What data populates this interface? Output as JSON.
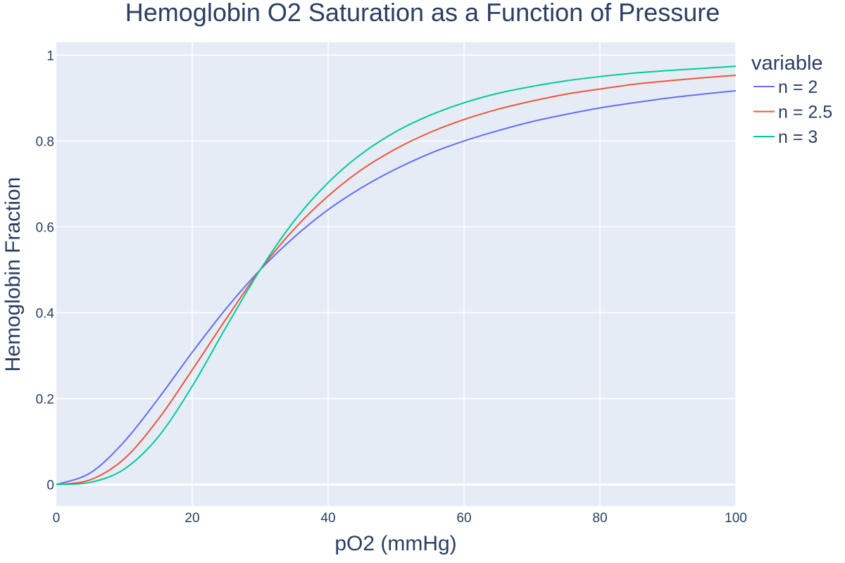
{
  "chart_data": {
    "type": "line",
    "title": "Hemoglobin O2 Saturation as a Function of Pressure",
    "xlabel": "pO2 (mmHg)",
    "ylabel": "Hemoglobin Fraction",
    "xlim": [
      0,
      100
    ],
    "ylim": [
      -0.05,
      1.03
    ],
    "x_ticks": [
      0,
      20,
      40,
      60,
      80,
      100
    ],
    "y_ticks": [
      0,
      0.2,
      0.4,
      0.6,
      0.8,
      1
    ],
    "x_tick_labels": [
      "0",
      "20",
      "40",
      "60",
      "80",
      "100"
    ],
    "y_tick_labels": [
      "0",
      "0.2",
      "0.4",
      "0.6",
      "0.8",
      "1"
    ],
    "grid": true,
    "legend": {
      "title": "variable",
      "position": "right-top"
    },
    "x": [
      0,
      5,
      10,
      15,
      20,
      25,
      30,
      35,
      40,
      45,
      50,
      55,
      60,
      65,
      70,
      75,
      80,
      85,
      90,
      95,
      100
    ],
    "series": [
      {
        "name": "n = 2",
        "color": "#636efa",
        "values": [
          0,
          0.027,
          0.1,
          0.2,
          0.308,
          0.41,
          0.5,
          0.576,
          0.64,
          0.692,
          0.735,
          0.771,
          0.8,
          0.824,
          0.845,
          0.862,
          0.877,
          0.889,
          0.9,
          0.909,
          0.917
        ]
      },
      {
        "name": "n = 2.5",
        "color": "#ef553b",
        "values": [
          0,
          0.011,
          0.06,
          0.152,
          0.267,
          0.386,
          0.5,
          0.595,
          0.672,
          0.734,
          0.782,
          0.82,
          0.85,
          0.874,
          0.893,
          0.909,
          0.921,
          0.932,
          0.94,
          0.947,
          0.953
        ]
      },
      {
        "name": "n = 3",
        "color": "#00cc96",
        "values": [
          0,
          0.005,
          0.036,
          0.111,
          0.229,
          0.367,
          0.5,
          0.614,
          0.703,
          0.771,
          0.822,
          0.86,
          0.889,
          0.911,
          0.927,
          0.94,
          0.95,
          0.958,
          0.964,
          0.969,
          0.974
        ]
      }
    ]
  }
}
